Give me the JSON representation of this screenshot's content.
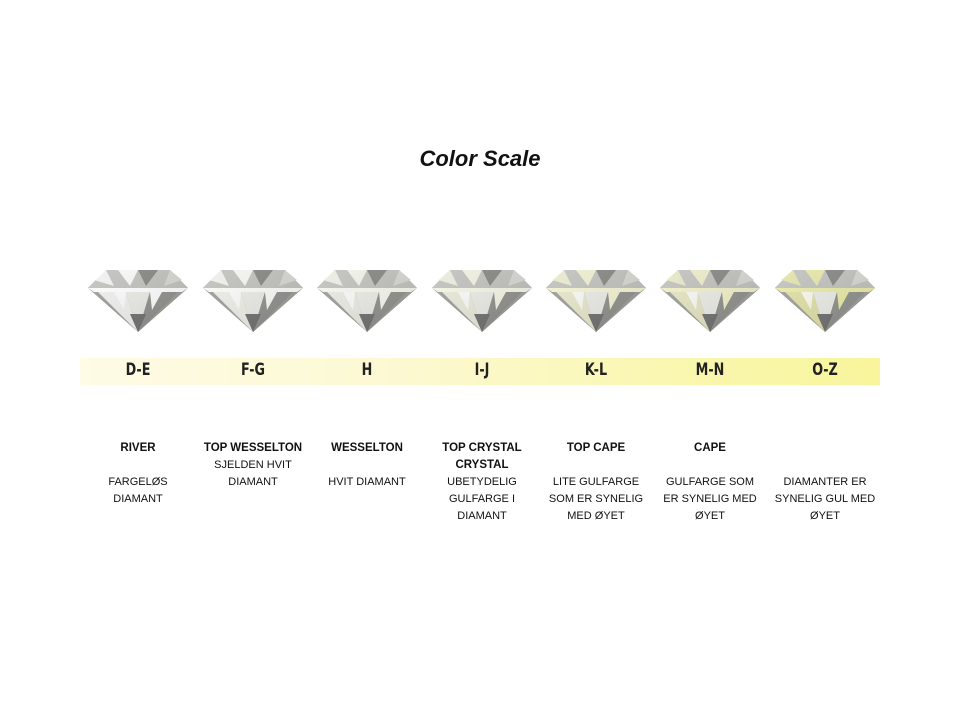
{
  "title": "Color Scale",
  "grades": [
    {
      "label": "D-E",
      "header": [
        "RIVER"
      ],
      "description": [
        "FARGELØS",
        "DIAMANT"
      ],
      "tint": "#ffffff"
    },
    {
      "label": "F-G",
      "header": [
        "TOP WESSELTON"
      ],
      "description": [
        "SJELDEN HVIT",
        "DIAMANT"
      ],
      "tint": "#fbfbf6"
    },
    {
      "label": "H",
      "header": [
        "WESSELTON"
      ],
      "description": [
        "HVIT DIAMANT"
      ],
      "tint": "#f7f7ee"
    },
    {
      "label": "I-J",
      "header": [
        "TOP CRYSTAL",
        "CRYSTAL"
      ],
      "description": [
        "UBETYDELIG",
        "GULFARGE I",
        "DIAMANT"
      ],
      "tint": "#f4f4e2"
    },
    {
      "label": "K-L",
      "header": [
        "TOP CAPE"
      ],
      "description": [
        "LITE GULFARGE",
        "SOM ER SYNELIG",
        "MED ØYET"
      ],
      "tint": "#f2f2cc"
    },
    {
      "label": "M-N",
      "header": [
        "CAPE"
      ],
      "description": [
        "GULFARGE SOM",
        "ER SYNELIG MED",
        "ØYET"
      ],
      "tint": "#eeeec0"
    },
    {
      "label": "O-Z",
      "header": [],
      "description": [
        "DIAMANTER ER",
        "SYNELIG GUL MED",
        "ØYET"
      ],
      "tint": "#e6e896"
    }
  ],
  "band_colors": [
    "#fefbe6",
    "#f8f59c"
  ]
}
